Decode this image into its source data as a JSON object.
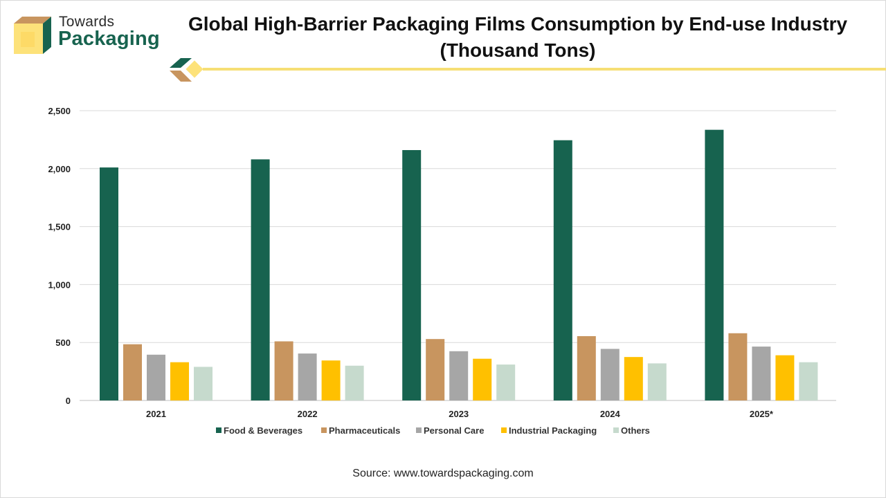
{
  "brand": {
    "name_line1": "Towards",
    "name_line2": "Packaging",
    "colors": {
      "green": "#17634f",
      "tan": "#c8955f",
      "yellow": "#fde27a",
      "line": "#f6df75"
    }
  },
  "source_text": "Source: www.towardspackaging.com",
  "chart_data": {
    "type": "bar",
    "title": "Global High-Barrier Packaging Films Consumption by End-use Industry (Thousand Tons)",
    "title_lines": [
      "Global High-Barrier Packaging Films Consumption by End-use Industry",
      "(Thousand Tons)"
    ],
    "xlabel": "",
    "ylabel": "",
    "ylim": [
      0,
      2500
    ],
    "yticks": [
      0,
      500,
      1000,
      1500,
      2000,
      2500
    ],
    "ytick_labels": [
      "0",
      "500",
      "1,000",
      "1,500",
      "2,000",
      "2,500"
    ],
    "grid": true,
    "legend_position": "bottom",
    "categories": [
      "2021",
      "2022",
      "2023",
      "2024",
      "2025*"
    ],
    "series": [
      {
        "name": "Food & Beverages",
        "color": "#17634f",
        "values": [
          2010,
          2080,
          2160,
          2245,
          2335
        ]
      },
      {
        "name": "Pharmaceuticals",
        "color": "#c8955f",
        "values": [
          485,
          510,
          530,
          555,
          580
        ]
      },
      {
        "name": "Personal Care",
        "color": "#a6a6a6",
        "values": [
          395,
          405,
          425,
          445,
          465
        ]
      },
      {
        "name": "Industrial Packaging",
        "color": "#ffc000",
        "values": [
          330,
          345,
          360,
          375,
          390
        ]
      },
      {
        "name": "Others",
        "color": "#c6dacd",
        "values": [
          290,
          300,
          310,
          320,
          330
        ]
      }
    ]
  }
}
